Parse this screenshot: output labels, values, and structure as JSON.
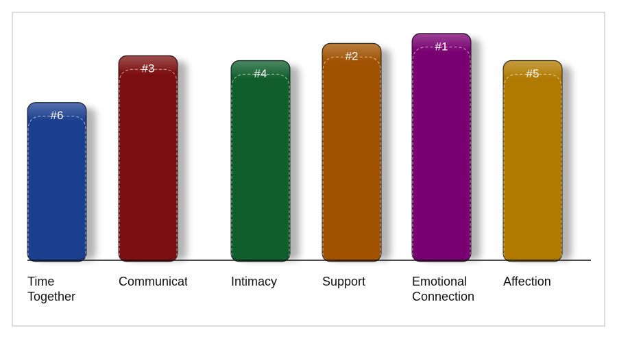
{
  "chart_data": {
    "type": "bar",
    "categories": [
      "Time Together",
      "Communication",
      "Intimacy",
      "Support",
      "Emotional Connection",
      "Affection"
    ],
    "values": [
      64,
      83,
      81,
      88,
      92,
      81
    ],
    "value_labels": [
      "#6",
      "#3",
      "#4",
      "#2",
      "#1",
      "#5"
    ],
    "colors": [
      "#1b3f8f",
      "#7c1010",
      "#0f5e2c",
      "#a05200",
      "#780070",
      "#b07a00"
    ],
    "ylim": [
      0,
      100
    ]
  }
}
